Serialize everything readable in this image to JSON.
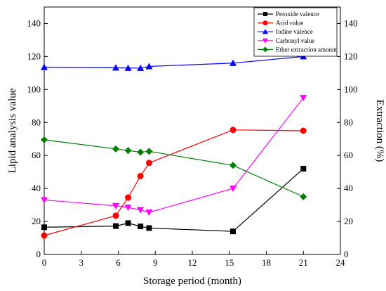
{
  "chart_data": {
    "type": "line",
    "xlabel": "Storage period (month)",
    "ylabel": "Lipid analysis value",
    "y2label": "Extraction (%)",
    "xlim": [
      0,
      24
    ],
    "ylim": [
      0,
      150
    ],
    "y2lim": [
      0,
      150
    ],
    "xticks": [
      0,
      3,
      6,
      9,
      12,
      15,
      18,
      21,
      24
    ],
    "yticks": [
      0,
      20,
      40,
      60,
      80,
      100,
      120,
      140
    ],
    "y2ticks": [
      0,
      20,
      40,
      60,
      80,
      100,
      120,
      140
    ],
    "legend_position": "top-right",
    "grid": false,
    "series": [
      {
        "name": "Peroxide valence",
        "axis": "left",
        "marker": "square",
        "color": "#000000",
        "x": [
          0,
          5.8,
          6.8,
          7.8,
          8.5,
          15.3,
          21
        ],
        "y": [
          16.5,
          17.2,
          19,
          17,
          16,
          14,
          52
        ]
      },
      {
        "name": "Acid value",
        "axis": "left",
        "marker": "circle",
        "color": "#ff0000",
        "x": [
          0,
          5.8,
          6.8,
          7.8,
          8.5,
          15.3,
          21
        ],
        "y": [
          11.5,
          23.5,
          34.5,
          47.5,
          55.5,
          75.5,
          75
        ]
      },
      {
        "name": "Iodine valence",
        "axis": "left",
        "marker": "triangle-up",
        "color": "#0000ff",
        "x": [
          0,
          5.8,
          6.8,
          7.8,
          8.5,
          15.3,
          21
        ],
        "y": [
          113.5,
          113.2,
          113,
          113,
          114,
          116,
          120
        ]
      },
      {
        "name": "Carbonyl value",
        "axis": "left",
        "marker": "triangle-down",
        "color": "#ff00ff",
        "x": [
          0,
          5.8,
          6.8,
          7.8,
          8.5,
          15.3,
          21
        ],
        "y": [
          33,
          29.5,
          28.5,
          27,
          25.5,
          40,
          95
        ]
      },
      {
        "name": "Ether extraction amount",
        "axis": "right",
        "marker": "diamond",
        "color": "#008000",
        "x": [
          0,
          5.8,
          6.8,
          7.8,
          8.5,
          15.3,
          21
        ],
        "y": [
          69.5,
          64,
          63,
          62,
          62.5,
          54,
          35
        ]
      }
    ]
  }
}
